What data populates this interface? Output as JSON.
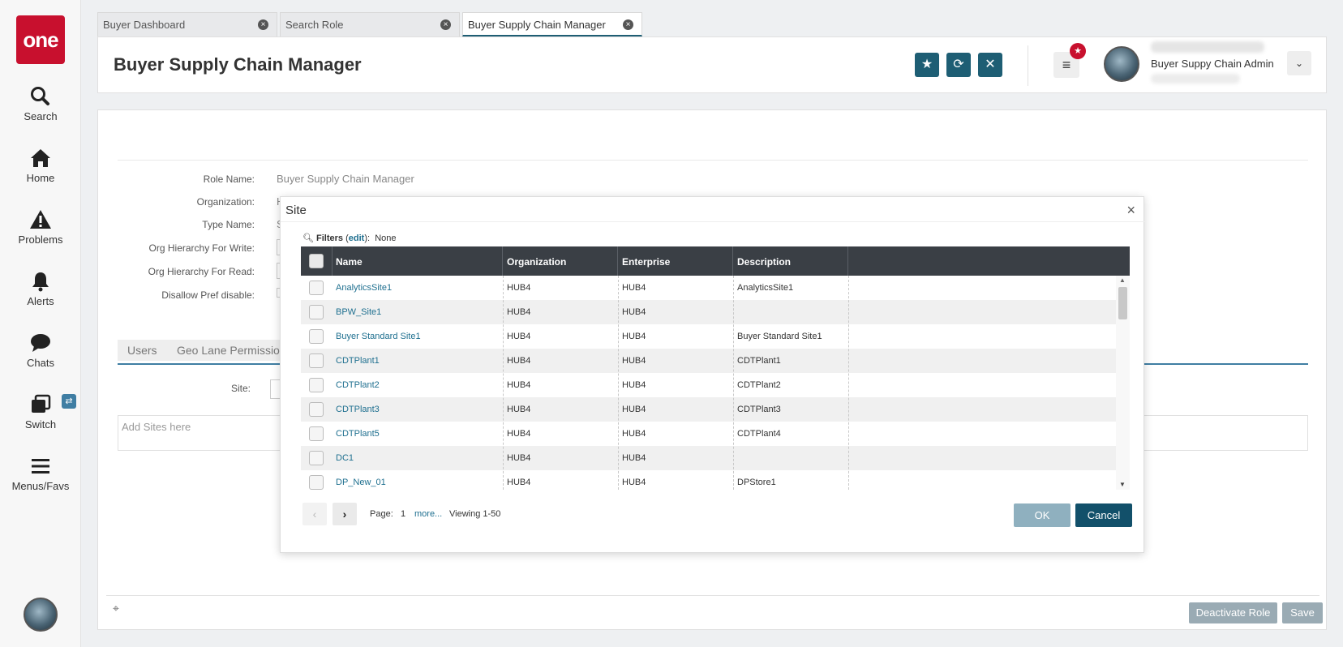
{
  "app": {
    "logo_text": "one",
    "brand_color": "#c8102e",
    "accent_color": "#1e5e74"
  },
  "sidebar": {
    "items": [
      {
        "label": "Search",
        "icon": "search-icon"
      },
      {
        "label": "Home",
        "icon": "home-icon"
      },
      {
        "label": "Problems",
        "icon": "warning-icon"
      },
      {
        "label": "Alerts",
        "icon": "bell-icon"
      },
      {
        "label": "Chats",
        "icon": "chat-icon"
      },
      {
        "label": "Switch",
        "icon": "switch-icon"
      },
      {
        "label": "Menus/Favs",
        "icon": "menu-icon"
      }
    ]
  },
  "tabs": [
    {
      "label": "Buyer Dashboard"
    },
    {
      "label": "Search Role"
    },
    {
      "label": "Buyer Supply Chain Manager",
      "active": true
    }
  ],
  "header": {
    "title": "Buyer Supply Chain Manager",
    "user_name": "Buyer Suppy Chain Admin"
  },
  "form": {
    "role_name_label": "Role Name:",
    "role_name_value": "Buyer Supply Chain Manager",
    "organization_label": "Organization:",
    "organization_value": "H",
    "type_name_label": "Type Name:",
    "type_name_value": "S",
    "org_write_label": "Org Hierarchy For Write:",
    "org_read_label": "Org Hierarchy For Read:",
    "disallow_label": "Disallow Pref disable:"
  },
  "subtabs": [
    {
      "label": "Users"
    },
    {
      "label": "Geo Lane Permission"
    }
  ],
  "site_label": "Site:",
  "sites_placeholder": "Add Sites here",
  "footer": {
    "deactivate_label": "Deactivate Role",
    "save_label": "Save"
  },
  "modal": {
    "title": "Site",
    "filters_label": "Filters",
    "filters_edit": "edit",
    "filters_value": "None",
    "columns": [
      "Name",
      "Organization",
      "Enterprise",
      "Description"
    ],
    "rows": [
      {
        "name": "AnalyticsSite1",
        "organization": "HUB4",
        "enterprise": "HUB4",
        "description": "AnalyticsSite1"
      },
      {
        "name": "BPW_Site1",
        "organization": "HUB4",
        "enterprise": "HUB4",
        "description": ""
      },
      {
        "name": "Buyer Standard Site1",
        "organization": "HUB4",
        "enterprise": "HUB4",
        "description": "Buyer Standard Site1"
      },
      {
        "name": "CDTPlant1",
        "organization": "HUB4",
        "enterprise": "HUB4",
        "description": "CDTPlant1"
      },
      {
        "name": "CDTPlant2",
        "organization": "HUB4",
        "enterprise": "HUB4",
        "description": "CDTPlant2"
      },
      {
        "name": "CDTPlant3",
        "organization": "HUB4",
        "enterprise": "HUB4",
        "description": "CDTPlant3"
      },
      {
        "name": "CDTPlant5",
        "organization": "HUB4",
        "enterprise": "HUB4",
        "description": "CDTPlant4"
      },
      {
        "name": "DC1",
        "organization": "HUB4",
        "enterprise": "HUB4",
        "description": ""
      },
      {
        "name": "DP_New_01",
        "organization": "HUB4",
        "enterprise": "HUB4",
        "description": "DPStore1"
      }
    ],
    "pagination": {
      "page_label": "Page:",
      "page_number": "1",
      "more_label": "more...",
      "viewing": "Viewing 1-50"
    },
    "ok_label": "OK",
    "cancel_label": "Cancel"
  }
}
